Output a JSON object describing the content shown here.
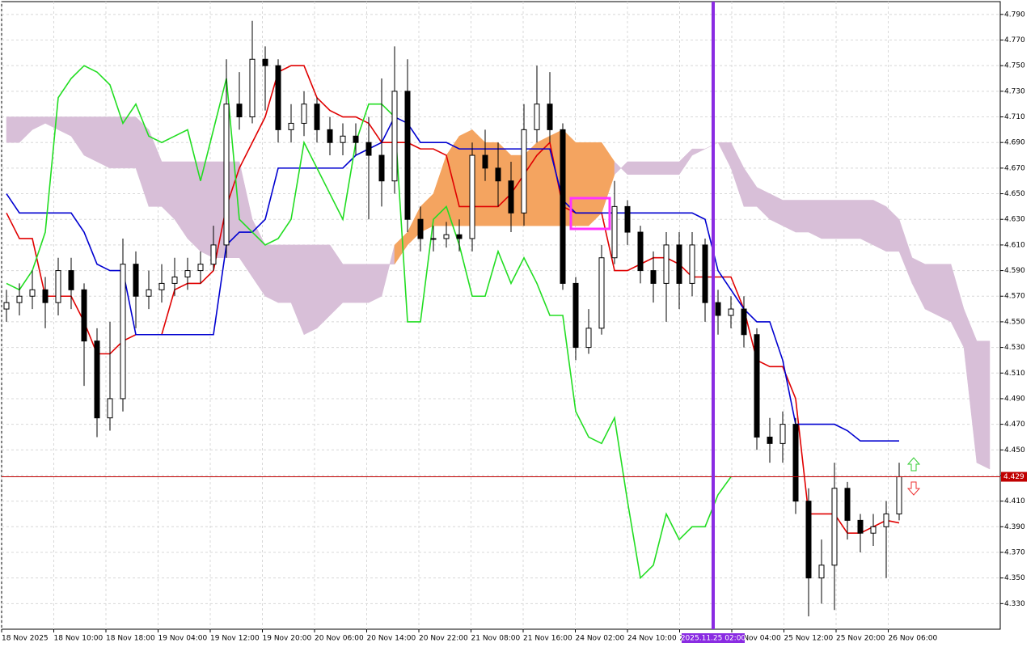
{
  "chart_data": {
    "type": "candlestick",
    "ylim": [
      4.31,
      4.8
    ],
    "yticks": [
      {
        "value": 4.33,
        "label": "4.330"
      },
      {
        "value": 4.35,
        "label": "4.350"
      },
      {
        "value": 4.37,
        "label": "4.370"
      },
      {
        "value": 4.39,
        "label": "4.390"
      },
      {
        "value": 4.41,
        "label": "4.410"
      },
      {
        "value": 4.43,
        "label": "4.430"
      },
      {
        "value": 4.45,
        "label": "4.450"
      },
      {
        "value": 4.47,
        "label": "4.470"
      },
      {
        "value": 4.49,
        "label": "4.490"
      },
      {
        "value": 4.51,
        "label": "4.510"
      },
      {
        "value": 4.53,
        "label": "4.530"
      },
      {
        "value": 4.55,
        "label": "4.550"
      },
      {
        "value": 4.57,
        "label": "4.570"
      },
      {
        "value": 4.59,
        "label": "4.590"
      },
      {
        "value": 4.61,
        "label": "4.610"
      },
      {
        "value": 4.63,
        "label": "4.630"
      },
      {
        "value": 4.65,
        "label": "4.650"
      },
      {
        "value": 4.67,
        "label": "4.670"
      },
      {
        "value": 4.69,
        "label": "4.690"
      },
      {
        "value": 4.71,
        "label": "4.710"
      },
      {
        "value": 4.73,
        "label": "4.730"
      },
      {
        "value": 4.75,
        "label": "4.750"
      },
      {
        "value": 4.77,
        "label": "4.770"
      },
      {
        "value": 4.79,
        "label": "4.790"
      }
    ],
    "xticks": [
      "18 Nov 2025",
      "18 Nov 10:00",
      "18 Nov 18:00",
      "19 Nov 04:00",
      "19 Nov 12:00",
      "19 Nov 20:00",
      "20 Nov 06:00",
      "20 Nov 14:00",
      "20 Nov 22:00",
      "21 Nov 08:00",
      "21 Nov 16:00",
      "24 Nov 02:00",
      "24 Nov 10:00",
      "24 Nov 18:00",
      "25 Nov 04:00",
      "25 Nov 12:00",
      "25 Nov 20:00",
      "26 Nov 06:00"
    ],
    "grid": true,
    "candles": {
      "open": [
        4.56,
        4.565,
        4.57,
        4.575,
        4.565,
        4.59,
        4.575,
        4.535,
        4.475,
        4.49,
        4.595,
        4.57,
        4.575,
        4.58,
        4.585,
        4.59,
        4.595,
        4.61,
        4.72,
        4.71,
        4.755,
        4.75,
        4.7,
        4.705,
        4.72,
        4.7,
        4.69,
        4.695,
        4.69,
        4.68,
        4.66,
        4.73,
        4.63,
        4.615,
        4.615,
        4.618,
        4.615,
        4.68,
        4.67,
        4.66,
        4.635,
        4.7,
        4.72,
        4.7,
        4.58,
        4.53,
        4.545,
        4.6,
        4.64,
        4.62,
        4.59,
        4.58,
        4.61,
        4.58,
        4.61,
        4.565,
        4.555,
        4.56,
        4.54,
        4.46,
        4.455,
        4.47,
        4.41,
        4.35,
        4.36,
        4.42,
        4.395,
        4.385,
        4.39,
        4.4
      ],
      "high": [
        4.575,
        4.58,
        4.59,
        4.585,
        4.6,
        4.6,
        4.58,
        4.545,
        4.55,
        4.615,
        4.605,
        4.59,
        4.595,
        4.6,
        4.6,
        4.605,
        4.625,
        4.755,
        4.745,
        4.785,
        4.765,
        4.755,
        4.72,
        4.73,
        4.725,
        4.71,
        4.705,
        4.705,
        4.71,
        4.74,
        4.765,
        4.755,
        4.64,
        4.625,
        4.628,
        4.63,
        4.69,
        4.7,
        4.69,
        4.675,
        4.72,
        4.75,
        4.745,
        4.705,
        4.585,
        4.56,
        4.61,
        4.66,
        4.645,
        4.625,
        4.605,
        4.62,
        4.62,
        4.62,
        4.615,
        4.575,
        4.57,
        4.57,
        4.545,
        4.475,
        4.48,
        4.475,
        4.42,
        4.38,
        4.44,
        4.425,
        4.4,
        4.4,
        4.41,
        4.44
      ],
      "low": [
        4.55,
        4.555,
        4.56,
        4.545,
        4.555,
        4.56,
        4.5,
        4.46,
        4.465,
        4.48,
        4.545,
        4.56,
        4.565,
        4.57,
        4.575,
        4.58,
        4.59,
        4.6,
        4.7,
        4.705,
        4.715,
        4.69,
        4.69,
        4.695,
        4.69,
        4.68,
        4.68,
        4.68,
        4.63,
        4.64,
        4.65,
        4.62,
        4.605,
        4.605,
        4.608,
        4.605,
        4.605,
        4.66,
        4.64,
        4.62,
        4.625,
        4.69,
        4.69,
        4.575,
        4.52,
        4.525,
        4.54,
        4.595,
        4.61,
        4.58,
        4.565,
        4.55,
        4.56,
        4.57,
        4.55,
        4.54,
        4.545,
        4.53,
        4.45,
        4.44,
        4.44,
        4.4,
        4.32,
        4.33,
        4.325,
        4.38,
        4.37,
        4.375,
        4.35,
        4.395
      ],
      "close": [
        4.565,
        4.57,
        4.575,
        4.565,
        4.59,
        4.575,
        4.535,
        4.475,
        4.49,
        4.595,
        4.57,
        4.575,
        4.58,
        4.585,
        4.59,
        4.595,
        4.61,
        4.72,
        4.71,
        4.755,
        4.75,
        4.7,
        4.705,
        4.72,
        4.7,
        4.69,
        4.695,
        4.69,
        4.68,
        4.66,
        4.73,
        4.63,
        4.615,
        4.615,
        4.618,
        4.615,
        4.68,
        4.67,
        4.66,
        4.635,
        4.7,
        4.72,
        4.7,
        4.58,
        4.53,
        4.545,
        4.6,
        4.64,
        4.62,
        4.59,
        4.58,
        4.61,
        4.58,
        4.61,
        4.565,
        4.555,
        4.56,
        4.54,
        4.46,
        4.455,
        4.47,
        4.41,
        4.35,
        4.36,
        4.42,
        4.395,
        4.385,
        4.39,
        4.4,
        4.429
      ]
    },
    "lines": [
      {
        "color": "#e00000",
        "values": [
          4.635,
          4.615,
          4.615,
          4.57,
          4.57,
          4.57,
          4.55,
          4.525,
          4.525,
          4.535,
          4.54,
          4.54,
          4.54,
          4.575,
          4.58,
          4.58,
          4.59,
          4.64,
          4.67,
          4.69,
          4.71,
          4.745,
          4.75,
          4.75,
          4.725,
          4.715,
          4.71,
          4.71,
          4.705,
          4.69,
          4.69,
          4.69,
          4.685,
          4.685,
          4.68,
          4.64,
          4.64,
          4.64,
          4.64,
          4.65,
          4.665,
          4.68,
          4.69,
          4.64,
          4.635,
          4.635,
          4.635,
          4.59,
          4.59,
          4.595,
          4.6,
          4.6,
          4.595,
          4.585,
          4.585,
          4.585,
          4.585,
          4.56,
          4.52,
          4.515,
          4.515,
          4.49,
          4.4,
          4.4,
          4.4,
          4.385,
          4.385,
          4.39,
          4.395,
          4.393
        ]
      },
      {
        "color": "#0000d0",
        "values": [
          4.65,
          4.635,
          4.635,
          4.635,
          4.635,
          4.635,
          4.62,
          4.595,
          4.59,
          4.59,
          4.54,
          4.54,
          4.54,
          4.54,
          4.54,
          4.54,
          4.54,
          4.61,
          4.62,
          4.62,
          4.63,
          4.67,
          4.67,
          4.67,
          4.67,
          4.67,
          4.67,
          4.68,
          4.685,
          4.69,
          4.71,
          4.705,
          4.69,
          4.69,
          4.69,
          4.685,
          4.685,
          4.685,
          4.685,
          4.685,
          4.685,
          4.685,
          4.685,
          4.645,
          4.635,
          4.635,
          4.635,
          4.635,
          4.635,
          4.635,
          4.635,
          4.635,
          4.635,
          4.635,
          4.63,
          4.59,
          4.575,
          4.56,
          4.55,
          4.55,
          4.52,
          4.47,
          4.47,
          4.47,
          4.47,
          4.465,
          4.457,
          4.457,
          4.457,
          4.457
        ]
      },
      {
        "color": "#22dd22",
        "values": [
          4.58,
          4.575,
          4.59,
          4.62,
          4.725,
          4.74,
          4.75,
          4.745,
          4.735,
          4.705,
          4.72,
          4.695,
          4.69,
          4.695,
          4.7,
          4.66,
          4.7,
          4.74,
          4.63,
          4.62,
          4.61,
          4.615,
          4.63,
          4.69,
          4.67,
          4.65,
          4.63,
          4.69,
          4.72,
          4.72,
          4.71,
          4.55,
          4.55,
          4.63,
          4.64,
          4.61,
          4.57,
          4.57,
          4.605,
          4.58,
          4.6,
          4.58,
          4.555,
          4.555,
          4.48,
          4.46,
          4.455,
          4.475,
          4.41,
          4.35,
          4.36,
          4.4,
          4.38,
          4.39,
          4.39,
          4.415,
          4.429
        ]
      }
    ],
    "cloud": {
      "bull_color": "#f4a460",
      "bear_color": "#d8bfd8",
      "span_a": [
        4.69,
        4.69,
        4.7,
        4.705,
        4.7,
        4.695,
        4.68,
        4.675,
        4.67,
        4.67,
        4.67,
        4.64,
        4.64,
        4.63,
        4.615,
        4.605,
        4.6,
        4.6,
        4.6,
        4.585,
        4.57,
        4.565,
        4.565,
        4.54,
        4.545,
        4.555,
        4.565,
        4.565,
        4.565,
        4.57,
        4.61,
        4.62,
        4.64,
        4.65,
        4.68,
        4.695,
        4.7,
        4.69,
        4.69,
        4.68,
        4.68,
        4.69,
        4.695,
        4.7,
        4.69,
        4.69,
        4.69,
        4.675,
        4.665,
        4.665,
        4.665,
        4.665,
        4.665,
        4.68,
        4.685,
        4.69,
        4.67,
        4.64,
        4.64,
        4.63,
        4.625,
        4.62,
        4.62,
        4.615,
        4.615,
        4.615,
        4.615,
        4.61,
        4.605,
        4.605,
        4.58,
        4.56,
        4.555,
        4.55,
        4.53,
        4.44,
        4.435
      ],
      "span_b": [
        4.71,
        4.71,
        4.71,
        4.71,
        4.71,
        4.71,
        4.71,
        4.71,
        4.71,
        4.71,
        4.71,
        4.7,
        4.675,
        4.675,
        4.675,
        4.675,
        4.675,
        4.675,
        4.675,
        4.63,
        4.61,
        4.61,
        4.61,
        4.61,
        4.61,
        4.61,
        4.595,
        4.595,
        4.595,
        4.595,
        4.595,
        4.61,
        4.62,
        4.625,
        4.625,
        4.625,
        4.625,
        4.625,
        4.625,
        4.625,
        4.625,
        4.625,
        4.625,
        4.625,
        4.625,
        4.625,
        4.635,
        4.665,
        4.675,
        4.675,
        4.675,
        4.675,
        4.675,
        4.685,
        4.685,
        4.69,
        4.69,
        4.67,
        4.655,
        4.65,
        4.645,
        4.645,
        4.645,
        4.645,
        4.645,
        4.645,
        4.645,
        4.645,
        4.64,
        4.63,
        4.6,
        4.595,
        4.595,
        4.595,
        4.56,
        4.535,
        4.535
      ]
    },
    "price_line": {
      "value": 4.429,
      "color": "#c00000"
    },
    "vline": {
      "label": "2025.11.25 02:00",
      "color": "#8a2be2"
    }
  }
}
